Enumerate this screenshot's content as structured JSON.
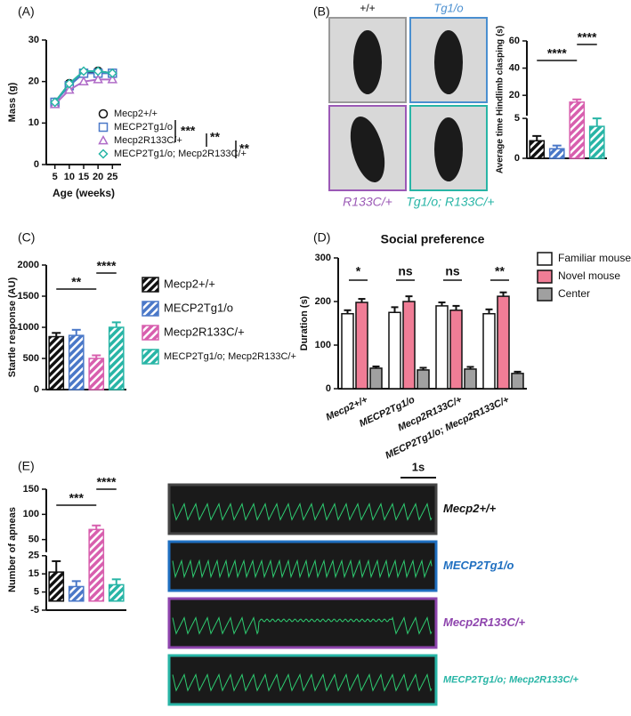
{
  "chart_data": [
    {
      "type": "line",
      "panel": "(A)",
      "xlabel": "Age (weeks)",
      "ylabel": "Mass (g)",
      "x": [
        5,
        10,
        15,
        20,
        25
      ],
      "xlim": [
        2,
        28
      ],
      "xticks": [
        5,
        10,
        15,
        20,
        25
      ],
      "ylim": [
        0,
        30
      ],
      "yticks": [
        0,
        10,
        20,
        30
      ],
      "series": [
        {
          "name": "Mecp2+/+",
          "color": "#111111",
          "marker": "circle",
          "values": [
            15,
            19.5,
            22,
            22.5,
            22
          ]
        },
        {
          "name": "MECP2Tg1/o",
          "color": "#4a78c8",
          "marker": "square",
          "values": [
            15,
            19,
            22,
            22,
            22
          ]
        },
        {
          "name": "Mecp2R133C/+",
          "color": "#b06cc8",
          "marker": "triangle",
          "values": [
            14.5,
            18,
            20,
            20.5,
            20.5
          ]
        },
        {
          "name": "MECP2Tg1/o; Mecp2R133C/+",
          "color": "#28b5a6",
          "marker": "diamond",
          "values": [
            15,
            19.5,
            22.5,
            22.5,
            22
          ]
        }
      ],
      "annotations": [
        "***",
        "**",
        "**"
      ]
    },
    {
      "type": "bar",
      "panel": "(B)",
      "ylabel": "Average time Hindlimb clasping (s)",
      "ylim": [
        0,
        60
      ],
      "ybreak": 5,
      "yticks": [
        0,
        5,
        20,
        40,
        60
      ],
      "values": [
        2.2,
        1.2,
        15,
        4
      ],
      "errors": [
        0.6,
        0.4,
        2,
        1
      ],
      "colors": [
        "#111111",
        "#4a78c8",
        "#d85fae",
        "#28b5a6"
      ],
      "annotations": [
        "****",
        "****"
      ]
    },
    {
      "type": "bar",
      "panel": "(C)",
      "ylabel": "Startle response (AU)",
      "ylim": [
        0,
        2000
      ],
      "yticks": [
        0,
        500,
        1000,
        1500,
        2000
      ],
      "values": [
        850,
        870,
        500,
        1000
      ],
      "errors": [
        60,
        90,
        50,
        80
      ],
      "colors": [
        "#111111",
        "#4a78c8",
        "#d85fae",
        "#28b5a6"
      ],
      "names": [
        "Mecp2+/+",
        "MECP2Tg1/o",
        "Mecp2R133C/+",
        "MECP2Tg1/o; Mecp2R133C/+"
      ],
      "annotations": [
        "**",
        "****"
      ]
    },
    {
      "type": "grouped_bar",
      "panel": "(D)",
      "title": "Social preference",
      "ylabel": "Duration (s)",
      "categories": [
        "Mecp2+/+",
        "MECP2Tg1/o",
        "Mecp2R133C/+",
        "MECP2Tg1/o; Mecp2R133C/+"
      ],
      "ylim": [
        0,
        300
      ],
      "yticks": [
        0,
        100,
        200,
        300
      ],
      "series": [
        {
          "name": "Familiar mouse",
          "color": "#ffffff",
          "values": [
            172,
            175,
            190,
            172
          ],
          "errors": [
            8,
            12,
            8,
            10
          ]
        },
        {
          "name": "Novel mouse",
          "color": "#f07d96",
          "values": [
            198,
            200,
            180,
            212
          ],
          "errors": [
            8,
            12,
            10,
            9
          ]
        },
        {
          "name": "Center",
          "color": "#a0a0a0",
          "values": [
            47,
            43,
            45,
            35
          ],
          "errors": [
            4,
            5,
            5,
            4
          ]
        }
      ],
      "annotations": [
        "*",
        "ns",
        "ns",
        "**"
      ]
    },
    {
      "type": "bar",
      "panel": "(E)",
      "ylabel": "Number of apneas",
      "ylim": [
        -5,
        150
      ],
      "ybreak": 25,
      "yticks": [
        -5,
        5,
        15,
        25,
        50,
        100,
        150
      ],
      "values": [
        16,
        8,
        70,
        9
      ],
      "errors": [
        6,
        3,
        8,
        3
      ],
      "colors": [
        "#111111",
        "#4a78c8",
        "#d85fae",
        "#28b5a6"
      ],
      "annotations": [
        "***",
        "****"
      ]
    }
  ],
  "photos": {
    "labels": [
      "+/+",
      "Tg1/o",
      "R133C/+",
      "Tg1/o; R133C/+"
    ]
  },
  "traces": {
    "scale": "1s",
    "labels": [
      "Mecp2+/+",
      "MECP2Tg1/o",
      "Mecp2R133C/+",
      "MECP2Tg1/o; Mecp2R133C/+"
    ]
  }
}
